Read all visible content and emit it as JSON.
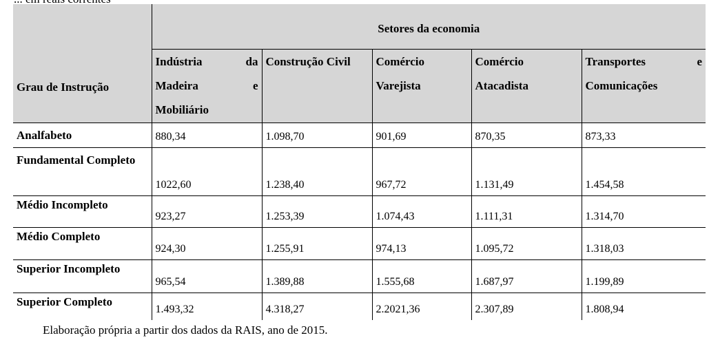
{
  "top_caption_fragment": "... em reais correntes",
  "table": {
    "sector_group": "Setores da economia",
    "row_header": "Grau de Instrução",
    "columns": [
      "Indústria da Madeira e Mobiliário",
      "Construção Civil",
      "Comércio Varejista",
      "Comércio Atacadista",
      "Transportes e Comunicações"
    ],
    "rows": [
      {
        "label": "Analfabeto",
        "values": [
          "880,34",
          "1.098,70",
          "901,69",
          "870,35",
          "873,33"
        ]
      },
      {
        "label": "Fundamental Completo",
        "values": [
          "1022,60",
          "1.238,40",
          "967,72",
          "1.131,49",
          "1.454,58"
        ]
      },
      {
        "label": "Médio Incompleto",
        "values": [
          "923,27",
          "1.253,39",
          "1.074,43",
          "1.111,31",
          "1.314,70"
        ]
      },
      {
        "label": "Médio Completo",
        "values": [
          "924,30",
          "1.255,91",
          "974,13",
          "1.095,72",
          "1.318,03"
        ]
      },
      {
        "label": "Superior Incompleto",
        "values": [
          "965,54",
          "1.389,88",
          "1.555,68",
          "1.687,97",
          "1.199,89"
        ]
      },
      {
        "label": "Superior Completo",
        "values": [
          "1.493,32",
          "4.318,27",
          "2.2021,36",
          "2.307,89",
          "1.808,94"
        ]
      }
    ]
  },
  "source_note": "Elaboração própria a partir dos dados da RAIS, ano de 2015."
}
